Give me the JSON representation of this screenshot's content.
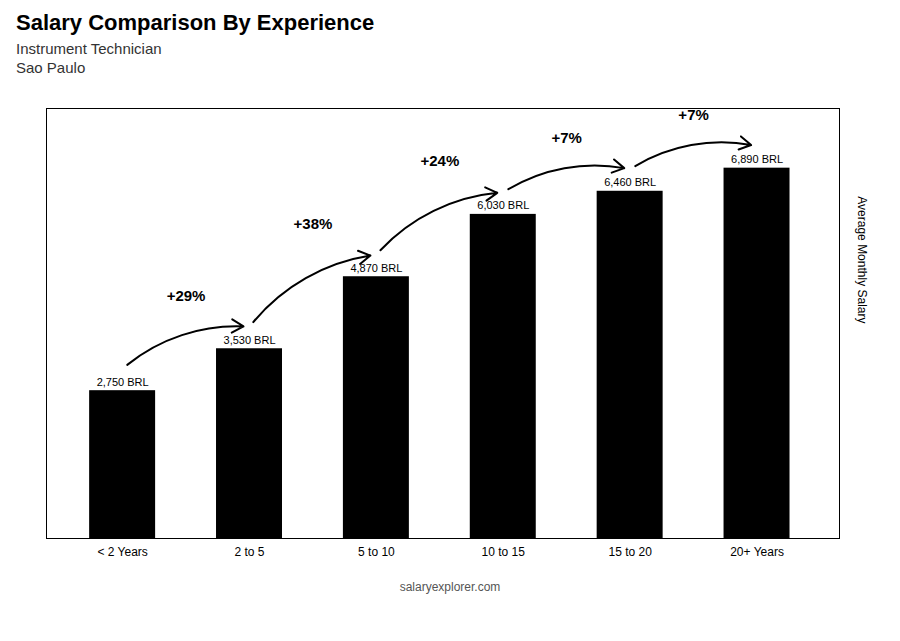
{
  "chart_data": {
    "type": "bar",
    "title": "Salary Comparison By Experience",
    "subtitle": [
      "Instrument Technician",
      "Sao Paulo"
    ],
    "caption": "salaryexplorer.com",
    "ylabel": "Average Monthly Salary",
    "categories": [
      "< 2 Years",
      "2 to 5",
      "5 to 10",
      "10 to 15",
      "15 to 20",
      "20+ Years"
    ],
    "values": [
      2750,
      3530,
      4870,
      6030,
      6460,
      6890
    ],
    "value_labels": [
      "2,750 BRL",
      "3,530 BRL",
      "4,870 BRL",
      "6,030 BRL",
      "6,460 BRL",
      "6,890 BRL"
    ],
    "data_labels": true,
    "annotations": [
      {
        "from": "< 2 Years",
        "to": "2 to 5",
        "text": "+29%"
      },
      {
        "from": "2 to 5",
        "to": "5 to 10",
        "text": "+38%"
      },
      {
        "from": "5 to 10",
        "to": "10 to 15",
        "text": "+24%"
      },
      {
        "from": "10 to 15",
        "to": "15 to 20",
        "text": "+7%"
      },
      {
        "from": "15 to 20",
        "to": "20+ Years",
        "text": "+7%"
      }
    ],
    "ylim": [
      0,
      8000
    ],
    "tick_labels": "x",
    "grid": false
  }
}
